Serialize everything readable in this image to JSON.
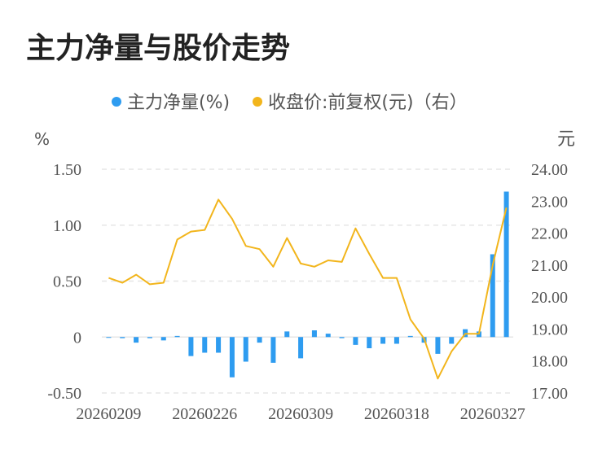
{
  "title": "主力净量与股价走势",
  "colors": {
    "bar": "#2e9cf0",
    "line": "#f2b51c",
    "grid": "#e6e6e6",
    "text": "#555555"
  },
  "chart_data": {
    "type": "bar+line",
    "legend": [
      {
        "name": "主力净量(%)",
        "color": "#2e9cf0",
        "marker": "circle"
      },
      {
        "name": "收盘价:前复权(元)（右）",
        "color": "#f2b51c",
        "marker": "circle"
      }
    ],
    "left_unit": "%",
    "right_unit": "元",
    "left_axis": {
      "ticks": [
        "1.50",
        "1.00",
        "0.50",
        "0",
        "-0.50"
      ],
      "values": [
        1.5,
        1.0,
        0.5,
        0,
        -0.5
      ],
      "range": [
        -0.5,
        1.5
      ]
    },
    "right_axis": {
      "ticks": [
        "24.00",
        "23.00",
        "22.00",
        "21.00",
        "20.00",
        "19.00",
        "18.00",
        "17.00"
      ],
      "values": [
        24,
        23,
        22,
        21,
        20,
        19,
        18,
        17
      ],
      "range": [
        17,
        24
      ]
    },
    "x_tick_labels": [
      "20260209",
      "20260226",
      "20260309",
      "20260318",
      "20260327"
    ],
    "x_tick_indices": [
      0,
      7,
      14,
      21,
      28
    ],
    "bar_values": [
      0.0,
      -0.01,
      -0.05,
      -0.01,
      -0.03,
      0.01,
      -0.17,
      -0.14,
      -0.14,
      -0.36,
      -0.22,
      -0.05,
      -0.23,
      0.05,
      -0.19,
      0.06,
      0.03,
      -0.01,
      -0.07,
      -0.1,
      -0.06,
      -0.06,
      0.01,
      -0.05,
      -0.15,
      -0.06,
      0.07,
      0.05,
      0.74,
      1.3
    ],
    "line_values": [
      20.6,
      20.45,
      20.7,
      20.4,
      20.45,
      21.8,
      22.05,
      22.1,
      23.05,
      22.45,
      21.6,
      21.5,
      20.95,
      21.85,
      21.05,
      20.95,
      21.15,
      21.1,
      22.15,
      21.35,
      20.6,
      20.6,
      19.3,
      18.7,
      17.45,
      18.3,
      18.85,
      18.85,
      21.0,
      22.8
    ]
  }
}
